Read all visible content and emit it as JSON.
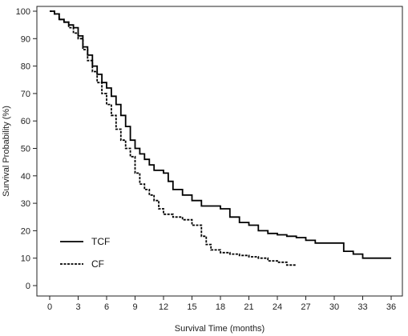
{
  "chart_data": {
    "type": "line",
    "step": true,
    "xlabel": "Survival Time (months)",
    "ylabel": "Survival Probability (%)",
    "xlim": [
      0,
      36
    ],
    "ylim": [
      0,
      100
    ],
    "x_ticks": [
      0,
      3,
      6,
      9,
      12,
      15,
      18,
      21,
      24,
      27,
      30,
      33,
      36
    ],
    "y_ticks": [
      0,
      10,
      20,
      30,
      40,
      50,
      60,
      70,
      80,
      90,
      100
    ],
    "grid": false,
    "legend_position": "bottom-left",
    "series": [
      {
        "name": "TCF",
        "line_style": "solid",
        "color": "#000000",
        "points": [
          [
            0,
            100
          ],
          [
            0.5,
            99
          ],
          [
            1,
            97
          ],
          [
            1.5,
            96
          ],
          [
            2,
            95
          ],
          [
            2.5,
            94
          ],
          [
            3,
            91
          ],
          [
            3.5,
            87
          ],
          [
            4,
            84
          ],
          [
            4.5,
            80
          ],
          [
            5,
            77
          ],
          [
            5.5,
            74
          ],
          [
            6,
            72
          ],
          [
            6.5,
            69
          ],
          [
            7,
            66
          ],
          [
            7.5,
            62
          ],
          [
            8,
            58
          ],
          [
            8.5,
            53
          ],
          [
            9,
            50
          ],
          [
            9.5,
            48
          ],
          [
            10,
            46
          ],
          [
            10.5,
            44
          ],
          [
            11,
            42
          ],
          [
            12,
            41
          ],
          [
            12.5,
            38
          ],
          [
            13,
            35
          ],
          [
            14,
            33
          ],
          [
            15,
            31
          ],
          [
            16,
            29
          ],
          [
            17,
            29
          ],
          [
            18,
            28
          ],
          [
            19,
            25
          ],
          [
            20,
            23
          ],
          [
            21,
            22
          ],
          [
            22,
            20
          ],
          [
            23,
            19
          ],
          [
            24,
            18.5
          ],
          [
            25,
            18
          ],
          [
            26,
            17.5
          ],
          [
            27,
            16.5
          ],
          [
            28,
            15.5
          ],
          [
            30,
            15.5
          ],
          [
            31,
            12.5
          ],
          [
            32,
            11.5
          ],
          [
            33,
            10
          ],
          [
            36,
            10
          ]
        ]
      },
      {
        "name": "CF",
        "line_style": "dashed",
        "color": "#000000",
        "points": [
          [
            0,
            100
          ],
          [
            0.5,
            99
          ],
          [
            1,
            97
          ],
          [
            1.5,
            96
          ],
          [
            2,
            94
          ],
          [
            2.5,
            92
          ],
          [
            3,
            90
          ],
          [
            3.5,
            86
          ],
          [
            4,
            82
          ],
          [
            4.5,
            78
          ],
          [
            5,
            74
          ],
          [
            5.5,
            70
          ],
          [
            6,
            66
          ],
          [
            6.5,
            62
          ],
          [
            7,
            57
          ],
          [
            7.5,
            53
          ],
          [
            8,
            50
          ],
          [
            8.5,
            47
          ],
          [
            9,
            41
          ],
          [
            9.5,
            37
          ],
          [
            10,
            35
          ],
          [
            10.5,
            33
          ],
          [
            11,
            31
          ],
          [
            11.5,
            28
          ],
          [
            12,
            26
          ],
          [
            13,
            25
          ],
          [
            14,
            24
          ],
          [
            15,
            22
          ],
          [
            16,
            18
          ],
          [
            16.5,
            15
          ],
          [
            17,
            13
          ],
          [
            18,
            12
          ],
          [
            19,
            11.5
          ],
          [
            20,
            11
          ],
          [
            21,
            10.5
          ],
          [
            22,
            10
          ],
          [
            23,
            9
          ],
          [
            24,
            8.5
          ],
          [
            25,
            7.5
          ],
          [
            26,
            7.5
          ]
        ]
      }
    ]
  }
}
